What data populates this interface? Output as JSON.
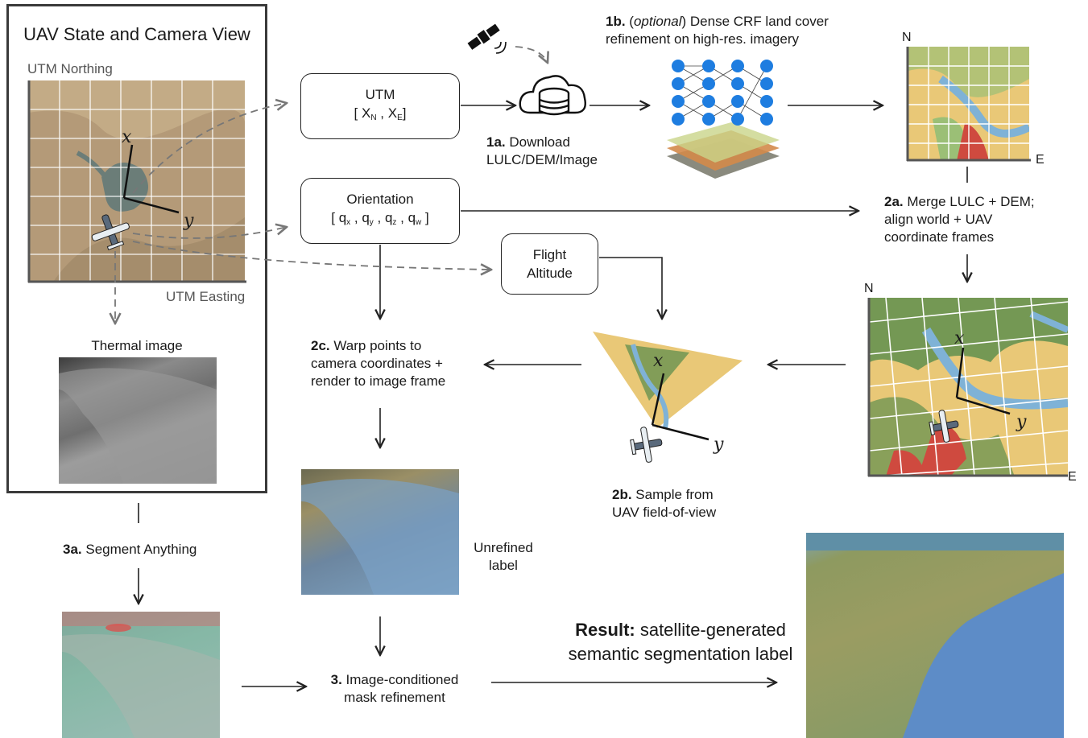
{
  "panel": {
    "title": "UAV State and Camera View",
    "northing_label": "UTM Northing",
    "easting_label": "UTM Easting",
    "thermal_label": "Thermal image"
  },
  "nodes": {
    "utm": {
      "line1": "UTM",
      "line2": "[ X",
      "sub_n": "N",
      "mid": " , X",
      "sub_e": "E",
      "end": "]"
    },
    "orientation": {
      "line1": "Orientation",
      "open": "[ q",
      "qx": "x",
      "qy": "y",
      "qz": "z",
      "qw": "w",
      "sep": " , q",
      "close": "]"
    },
    "altitude": {
      "line1": "Flight",
      "line2": "Altitude"
    }
  },
  "steps": {
    "s1a": {
      "num": "1a.",
      "text1": " Download",
      "text2": "LULC/DEM/Image"
    },
    "s1b": {
      "num": "1b.",
      "open": " (",
      "optional": "optional",
      "text1": ") Dense CRF land cover",
      "text2": "refinement on high-res. imagery"
    },
    "s2a": {
      "num": "2a.",
      "text1": " Merge LULC + DEM;",
      "text2": "align world + UAV",
      "text3": "coordinate frames"
    },
    "s2b": {
      "num": "2b.",
      "text1": " Sample from",
      "text2": "UAV field-of-view"
    },
    "s2c": {
      "num": "2c.",
      "text1": " Warp points to",
      "text2": "camera coordinates +",
      "text3": "render to image frame"
    },
    "s3a": {
      "num": "3a.",
      "text1": " Segment Anything"
    },
    "s3": {
      "num": "3.",
      "text1": " Image-conditioned",
      "text2": "mask refinement"
    },
    "unrefined1": "Unrefined",
    "unrefined2": "label",
    "result_bold": "Result:",
    "result1": " satellite-generated",
    "result2": "semantic segmentation label"
  },
  "map_labels": {
    "n1": "N",
    "e1": "E",
    "n2": "N",
    "e2": "E",
    "x": "x",
    "y": "y"
  },
  "colors": {
    "satellite": "#b49a78",
    "lulc_yellow": "#e9c877",
    "lulc_green": "#5f8f4e",
    "lulc_blue": "#7fb2d6",
    "lulc_red": "#cf4a3f",
    "node_blue": "#1e7de0",
    "dashed": "#666666"
  }
}
